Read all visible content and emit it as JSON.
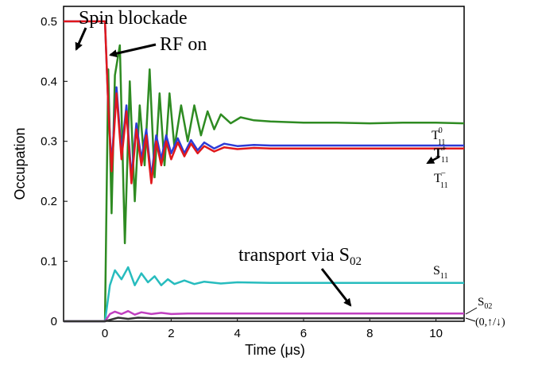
{
  "chart_data": {
    "type": "line",
    "xlabel": "Time (μs)",
    "ylabel": "Occupation",
    "xlim": [
      -1.25,
      10.85
    ],
    "ylim": [
      0,
      0.525
    ],
    "xticks": [
      "0",
      "2",
      "4",
      "6",
      "8",
      "10"
    ],
    "yticks": [
      "0",
      "0.1",
      "0.2",
      "0.3",
      "0.4",
      "0.5"
    ],
    "grid": false,
    "legend": "none",
    "annotations": {
      "spin_blockade": "Spin blockade",
      "rf_on": "RF on",
      "transport_prefix": "transport via S",
      "transport_sub": "02"
    },
    "curve_labels": {
      "t0": {
        "base": "T",
        "sub": "11",
        "sup": "0"
      },
      "tplus": {
        "base": "T",
        "sub": "11",
        "sup": "+"
      },
      "tminus": {
        "base": "T",
        "sub": "11",
        "sup": "−"
      },
      "s11": {
        "base": "S",
        "sub": "11"
      },
      "s02": {
        "base": "S",
        "sub": "02"
      },
      "state01": "(0,↑/↓)"
    },
    "series": [
      {
        "key": "t0",
        "color": "#2e8b22",
        "x": [
          -1.25,
          0,
          0.1,
          0.2,
          0.3,
          0.45,
          0.6,
          0.75,
          0.9,
          1.05,
          1.2,
          1.35,
          1.5,
          1.65,
          1.8,
          1.95,
          2.1,
          2.3,
          2.5,
          2.7,
          2.9,
          3.1,
          3.3,
          3.5,
          3.8,
          4.1,
          4.5,
          5,
          6,
          7,
          8,
          9,
          10,
          10.85
        ],
        "y": [
          0.0,
          0.0,
          0.42,
          0.18,
          0.41,
          0.46,
          0.13,
          0.4,
          0.2,
          0.36,
          0.26,
          0.42,
          0.24,
          0.38,
          0.26,
          0.38,
          0.29,
          0.36,
          0.3,
          0.36,
          0.31,
          0.35,
          0.32,
          0.345,
          0.33,
          0.34,
          0.335,
          0.333,
          0.331,
          0.331,
          0.33,
          0.331,
          0.331,
          0.33
        ]
      },
      {
        "key": "tplus",
        "color": "#2d3bd6",
        "x": [
          -1.25,
          0,
          0.1,
          0.2,
          0.35,
          0.5,
          0.65,
          0.8,
          0.95,
          1.1,
          1.25,
          1.4,
          1.55,
          1.7,
          1.85,
          2.0,
          2.2,
          2.4,
          2.6,
          2.8,
          3.0,
          3.3,
          3.6,
          4.0,
          4.5,
          5,
          6,
          7,
          8,
          9,
          10,
          10.85
        ],
        "y": [
          0.5,
          0.5,
          0.36,
          0.26,
          0.39,
          0.28,
          0.36,
          0.24,
          0.33,
          0.27,
          0.32,
          0.24,
          0.31,
          0.27,
          0.31,
          0.28,
          0.305,
          0.28,
          0.302,
          0.285,
          0.298,
          0.288,
          0.296,
          0.292,
          0.294,
          0.293,
          0.293,
          0.293,
          0.293,
          0.293,
          0.293,
          0.293
        ]
      },
      {
        "key": "tminus",
        "color": "#e0181c",
        "x": [
          -1.25,
          0,
          0.1,
          0.2,
          0.35,
          0.5,
          0.65,
          0.8,
          0.95,
          1.1,
          1.25,
          1.4,
          1.55,
          1.7,
          1.85,
          2.0,
          2.2,
          2.4,
          2.6,
          2.8,
          3.0,
          3.3,
          3.6,
          4.0,
          4.5,
          5,
          6,
          7,
          8,
          9,
          10,
          10.85
        ],
        "y": [
          0.5,
          0.5,
          0.36,
          0.25,
          0.38,
          0.27,
          0.35,
          0.23,
          0.32,
          0.26,
          0.31,
          0.23,
          0.3,
          0.26,
          0.3,
          0.27,
          0.298,
          0.275,
          0.296,
          0.28,
          0.292,
          0.283,
          0.29,
          0.287,
          0.289,
          0.288,
          0.288,
          0.288,
          0.288,
          0.288,
          0.288,
          0.288
        ]
      },
      {
        "key": "s11",
        "color": "#27bcbe",
        "x": [
          -1.25,
          0,
          0.15,
          0.3,
          0.5,
          0.7,
          0.9,
          1.1,
          1.3,
          1.5,
          1.7,
          1.9,
          2.1,
          2.4,
          2.7,
          3.0,
          3.5,
          4,
          5,
          6,
          7,
          8,
          9,
          10,
          10.85
        ],
        "y": [
          0.0,
          0.0,
          0.06,
          0.085,
          0.07,
          0.09,
          0.06,
          0.08,
          0.065,
          0.075,
          0.06,
          0.07,
          0.062,
          0.068,
          0.062,
          0.066,
          0.063,
          0.065,
          0.064,
          0.064,
          0.064,
          0.064,
          0.064,
          0.064,
          0.064
        ]
      },
      {
        "key": "s02",
        "color": "#c03fc0",
        "x": [
          -1.25,
          0,
          0.15,
          0.3,
          0.5,
          0.7,
          0.9,
          1.1,
          1.4,
          1.7,
          2.0,
          2.5,
          3.0,
          4,
          6,
          8,
          10,
          10.85
        ],
        "y": [
          0.0,
          0.0,
          0.012,
          0.016,
          0.012,
          0.017,
          0.011,
          0.015,
          0.012,
          0.014,
          0.012,
          0.013,
          0.013,
          0.013,
          0.013,
          0.013,
          0.013,
          0.013
        ]
      },
      {
        "key": "state01",
        "color": "#333333",
        "x": [
          -1.25,
          0,
          0.2,
          0.4,
          0.7,
          1.0,
          1.5,
          2,
          3,
          4,
          6,
          8,
          10,
          10.85
        ],
        "y": [
          0.0,
          0.0,
          0.003,
          0.006,
          0.004,
          0.006,
          0.005,
          0.005,
          0.005,
          0.005,
          0.005,
          0.005,
          0.005,
          0.005
        ]
      }
    ]
  }
}
